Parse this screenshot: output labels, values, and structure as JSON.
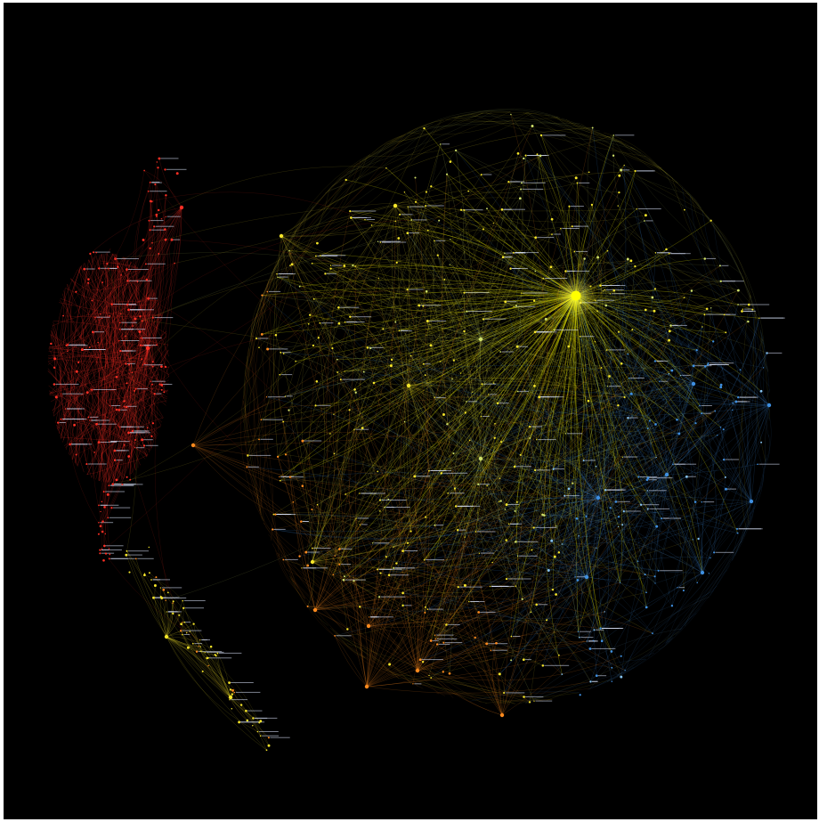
{
  "figure": {
    "background_color": "#000000",
    "frame_color": "#ffffff",
    "label_color": "#dfe7ff"
  },
  "clusters": [
    {
      "id": "red",
      "color": "#ff2f24"
    },
    {
      "id": "orange",
      "color": "#ff8a1e"
    },
    {
      "id": "yellow",
      "color": "#f5e52a"
    },
    {
      "id": "yellowgreen",
      "color": "#cfe06a"
    },
    {
      "id": "blue",
      "color": "#3f8fe0"
    },
    {
      "id": "lightblue",
      "color": "#86c3f2"
    }
  ],
  "hubs": [
    {
      "id": "central-hub",
      "color": "#ffff00",
      "emphasis": "largest node"
    }
  ]
}
